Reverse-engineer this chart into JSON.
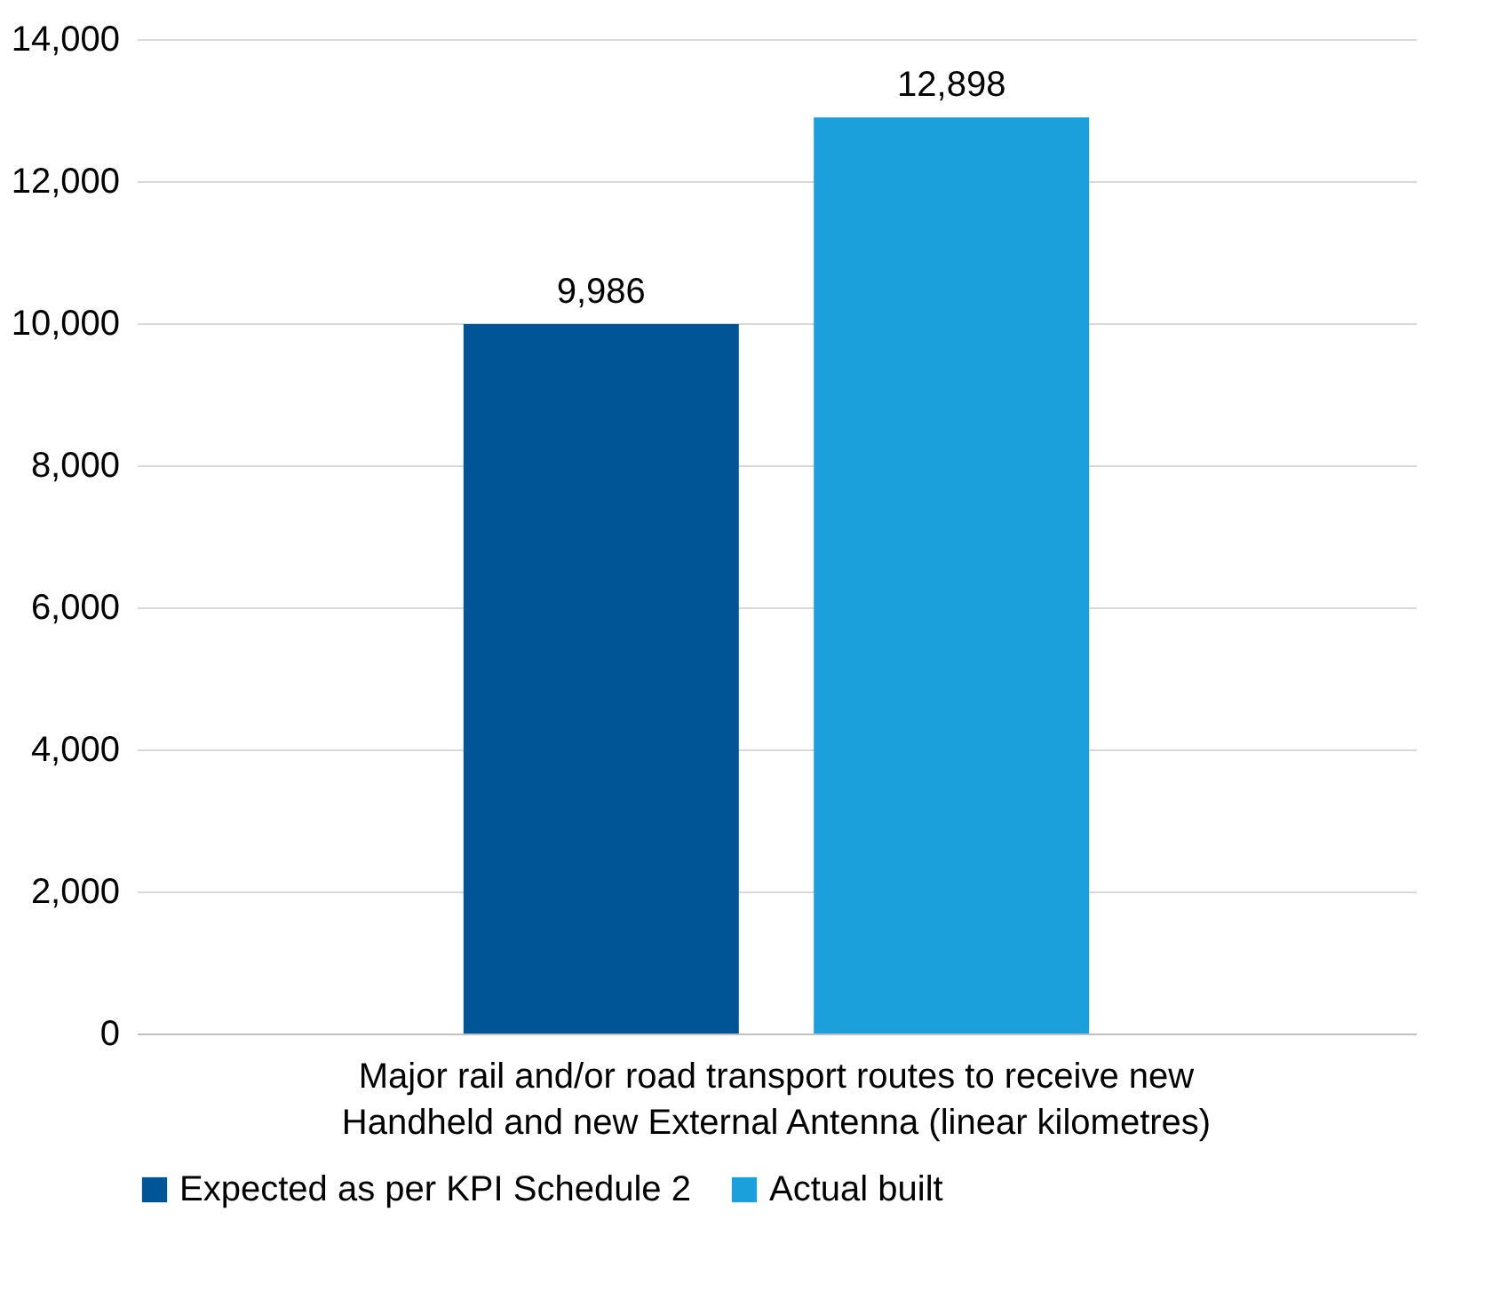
{
  "chart_data": {
    "type": "bar",
    "categories": [
      "Major rail and/or road transport routes to receive new Handheld and new External Antenna (linear kilometres)"
    ],
    "series": [
      {
        "name": "Expected as per KPI Schedule 2",
        "color": "#005596",
        "values": [
          9986
        ],
        "value_labels": [
          "9,986"
        ]
      },
      {
        "name": "Actual built",
        "color": "#1ca0dc",
        "values": [
          12898
        ],
        "value_labels": [
          "12,898"
        ]
      }
    ],
    "ylim": [
      0,
      14000
    ],
    "yticks": [
      0,
      {
        "value": 2000,
        "label": "2,000"
      },
      {
        "value": 4000,
        "label": "4,000"
      },
      {
        "value": 6000,
        "label": "6,000"
      },
      {
        "value": 8000,
        "label": "8,000"
      },
      {
        "value": 10000,
        "label": "10,000"
      },
      {
        "value": 12000,
        "label": "12,000"
      },
      {
        "value": 14000,
        "label": "14,000"
      }
    ],
    "grid": "y",
    "legend": "bottom"
  }
}
